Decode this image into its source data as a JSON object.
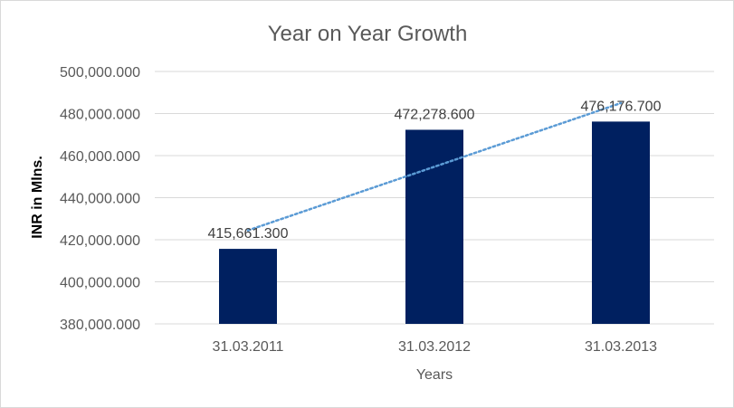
{
  "chart_data": {
    "type": "bar",
    "title": "Year on Year Growth",
    "xlabel": "Years",
    "ylabel": "INR in Mlns.",
    "categories": [
      "31.03.2011",
      "31.03.2012",
      "31.03.2013"
    ],
    "values": [
      415661.3,
      472278.6,
      476176.7
    ],
    "data_labels": [
      "415,661.300",
      "472,278.600",
      "476,176.700"
    ],
    "ylim": [
      380000,
      500000
    ],
    "y_ticks": [
      380000,
      400000,
      420000,
      440000,
      460000,
      480000,
      500000
    ],
    "y_tick_labels": [
      "380,000.000",
      "400,000.000",
      "420,000.000",
      "440,000.000",
      "460,000.000",
      "480,000.000",
      "500,000.000"
    ],
    "grid": true,
    "trendline": "linear dotted",
    "bar_color": "#002060",
    "trendline_color": "#5b9bd5"
  }
}
